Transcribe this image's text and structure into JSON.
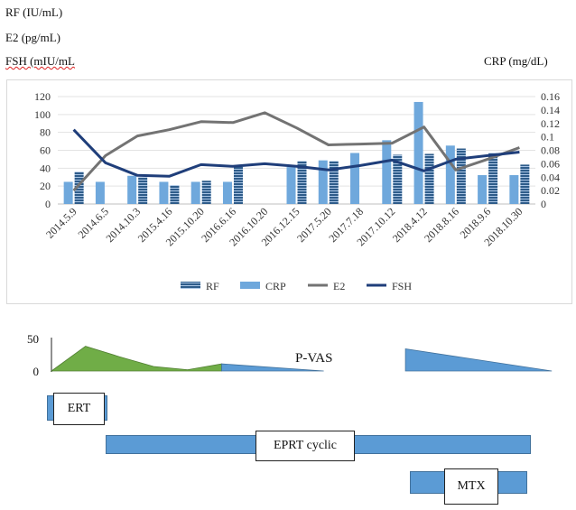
{
  "labels": {
    "rf": "RF (IU/mL)",
    "e2": "E2 (pg/mL)",
    "fsh": "FSH (mIU/mL",
    "crp": "CRP (mg/dL)"
  },
  "colors": {
    "rf": "#2e5c8a",
    "crp": "#6fa8dc",
    "e2": "#737373",
    "fsh": "#1f3e7a",
    "vas_green": "#70ad47",
    "vas_blue": "#5b9bd5"
  },
  "chart_data": [
    {
      "type": "bar+line",
      "categories": [
        "2014.5.9",
        "2014.6.5",
        "2014.10.3",
        "2015.4.16",
        "2015.10.20",
        "2016.6.16",
        "2016.10.20",
        "2016.12.15",
        "2017.5.20",
        "2017.7.18",
        "2017.10.12",
        "2018.4.12",
        "2018.8.16",
        "2018.9.6",
        "2018.10.30"
      ],
      "left_axis": {
        "ylim": [
          0,
          120
        ],
        "ticks": [
          "0",
          "20",
          "40",
          "60",
          "80",
          "100",
          "120"
        ]
      },
      "right_axis": {
        "ylim": [
          0,
          0.16
        ],
        "ticks": [
          "0",
          "0.02",
          "0.04",
          "0.06",
          "0.08",
          "0.1",
          "0.12",
          "0.14",
          "0.16"
        ]
      },
      "series": [
        {
          "name": "RF",
          "kind": "bar",
          "axis": "left",
          "values": [
            36,
            null,
            30,
            21,
            26,
            42,
            null,
            48,
            48,
            null,
            55,
            56,
            62,
            57,
            44
          ]
        },
        {
          "name": "CRP",
          "kind": "bar",
          "axis": "right",
          "values": [
            0.033,
            0.033,
            0.042,
            0.033,
            0.033,
            0.033,
            null,
            0.055,
            0.065,
            0.076,
            0.095,
            0.152,
            0.087,
            0.043,
            0.043
          ]
        },
        {
          "name": "E2",
          "kind": "line",
          "axis": "left",
          "values": [
            15,
            54,
            76,
            83,
            92,
            91,
            102,
            85,
            66,
            67,
            68,
            86,
            38,
            50,
            63
          ]
        },
        {
          "name": "FSH",
          "kind": "line",
          "axis": "left",
          "values": [
            83,
            46,
            32,
            31,
            44,
            42,
            45,
            42,
            38,
            43,
            49,
            37,
            50,
            54,
            58
          ]
        }
      ],
      "legend": [
        "RF",
        "CRP",
        "E2",
        "FSH"
      ],
      "legend_position": "bottom"
    },
    {
      "type": "area",
      "title": "P-VAS",
      "ylim": [
        0,
        50
      ],
      "ticks": [
        "0",
        "50"
      ],
      "segments": [
        {
          "name": "green",
          "points": [
            [
              0,
              0
            ],
            [
              1,
              38
            ],
            [
              2,
              22
            ],
            [
              3,
              7
            ],
            [
              4,
              2
            ],
            [
              5,
              11
            ]
          ]
        },
        {
          "name": "blue1",
          "points": [
            [
              5,
              11
            ],
            [
              8,
              0
            ]
          ]
        },
        {
          "name": "blue2",
          "points": [
            [
              10.4,
              34
            ],
            [
              14.7,
              0
            ]
          ]
        }
      ]
    }
  ],
  "treatments": [
    {
      "label": "ERT"
    },
    {
      "label": "EPRT cyclic"
    },
    {
      "label": "MTX"
    }
  ]
}
